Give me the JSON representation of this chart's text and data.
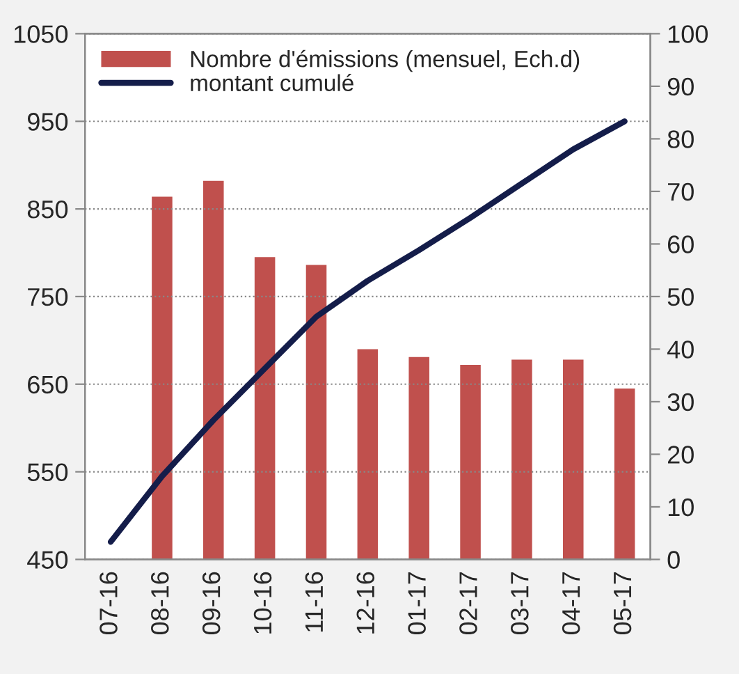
{
  "chart_data": {
    "type": "bar",
    "categories": [
      "07-16",
      "08-16",
      "09-16",
      "10-16",
      "11-16",
      "12-16",
      "01-17",
      "02-17",
      "03-17",
      "04-17",
      "05-17"
    ],
    "series": [
      {
        "name": "Nombre d'émissions (mensuel, Ech.d)",
        "axis": "y2",
        "color": "#c0504d",
        "values": [
          null,
          69,
          72,
          57.5,
          56,
          40,
          38.5,
          37,
          38,
          38,
          32.5
        ]
      },
      {
        "name": "montant cumulé",
        "type": "line",
        "color": "#141d4a",
        "values": [
          470,
          545,
          609,
          668,
          727,
          768,
          803,
          840,
          879,
          918,
          950
        ]
      }
    ],
    "ylim": [
      450,
      1050
    ],
    "yticks": [
      450,
      550,
      650,
      750,
      850,
      950,
      1050
    ],
    "y2lim": [
      0,
      100
    ],
    "y2ticks": [
      0,
      10,
      20,
      30,
      40,
      50,
      60,
      70,
      80,
      90,
      100
    ],
    "grid": "y",
    "legend": "top left",
    "marker": "none",
    "line_style": "solid"
  }
}
